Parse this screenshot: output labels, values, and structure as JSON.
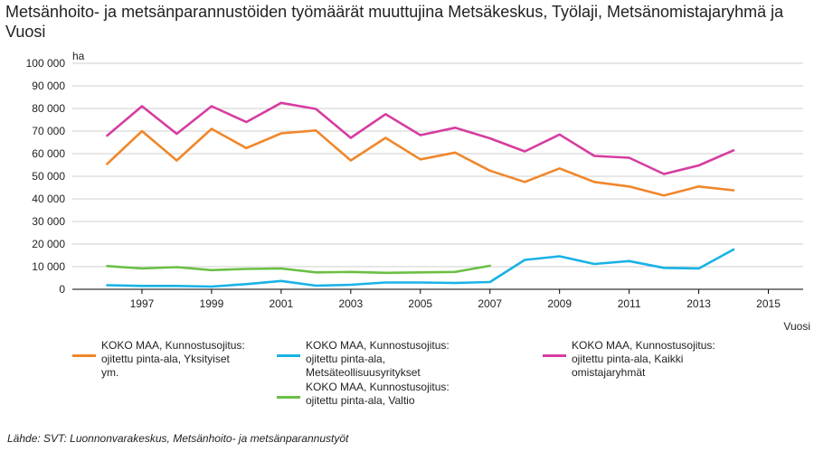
{
  "title": "Metsänhoito- ja metsänparannustöiden työmäärät muuttujina Metsäkeskus, Työlaji, Metsänomistajaryhmä ja Vuosi",
  "source": "Lähde: SVT: Luonnonvarakeskus, Metsänhoito- ja metsänparannustyöt",
  "chart_data": {
    "type": "line",
    "title": "Metsänhoito- ja metsänparannustöiden työmäärät muuttujina Metsäkeskus, Työlaji, Metsänomistajaryhmä ja Vuosi",
    "ylabel": "ha",
    "xlabel": "Vuosi",
    "xlim": [
      1995,
      2016
    ],
    "ylim": [
      0,
      100000
    ],
    "x_ticks": [
      1997,
      1999,
      2001,
      2003,
      2005,
      2007,
      2009,
      2011,
      2013,
      2015
    ],
    "y_ticks": [
      0,
      10000,
      20000,
      30000,
      40000,
      50000,
      60000,
      70000,
      80000,
      90000,
      100000
    ],
    "y_tick_labels": [
      "0",
      "10 000",
      "20 000",
      "30 000",
      "40 000",
      "50 000",
      "60 000",
      "70 000",
      "80 000",
      "90 000",
      "100 000"
    ],
    "grid": true,
    "legend_position": "bottom",
    "series": [
      {
        "name": "KOKO MAA, Kunnostusojitus: ojitettu pinta-ala, Yksityiset ym.",
        "color": "#f0872b",
        "x": [
          1996,
          1997,
          1998,
          1999,
          2000,
          2001,
          2002,
          2003,
          2004,
          2005,
          2006,
          2007,
          2008,
          2009,
          2010,
          2011,
          2012,
          2013,
          2014
        ],
        "values": [
          55500,
          70000,
          57000,
          71000,
          62500,
          69000,
          70300,
          57000,
          67000,
          57500,
          60500,
          52500,
          47500,
          53500,
          47500,
          45500,
          41500,
          45500,
          43800
        ]
      },
      {
        "name": "KOKO MAA, Kunnostusojitus: ojitettu pinta-ala, Metsäteollisuusyritykset",
        "color": "#1ab2e6",
        "x": [
          1996,
          1997,
          1998,
          1999,
          2000,
          2001,
          2002,
          2003,
          2004,
          2005,
          2006,
          2007,
          2008,
          2009,
          2010,
          2011,
          2012,
          2013,
          2014
        ],
        "values": [
          1800,
          1500,
          1500,
          1200,
          2300,
          3700,
          1600,
          2000,
          3000,
          3000,
          2800,
          3200,
          13000,
          14600,
          11200,
          12500,
          9500,
          9200,
          17600
        ]
      },
      {
        "name": "KOKO MAA, Kunnostusojitus: ojitettu pinta-ala, Kaikki omistajaryhmät",
        "color": "#d63da0",
        "x": [
          1996,
          1997,
          1998,
          1999,
          2000,
          2001,
          2002,
          2003,
          2004,
          2005,
          2006,
          2007,
          2008,
          2009,
          2010,
          2011,
          2012,
          2013,
          2014
        ],
        "values": [
          68000,
          81000,
          68800,
          81000,
          74000,
          82500,
          79800,
          67000,
          77500,
          68200,
          71500,
          66800,
          61000,
          68500,
          59000,
          58200,
          51000,
          54800,
          61500
        ]
      },
      {
        "name": "KOKO MAA, Kunnostusojitus: ojitettu pinta-ala, Valtio",
        "color": "#6cbf45",
        "x": [
          1996,
          1997,
          1998,
          1999,
          2000,
          2001,
          2002,
          2003,
          2004,
          2005,
          2006,
          2007
        ],
        "values": [
          10300,
          9200,
          9800,
          8500,
          9000,
          9200,
          7500,
          7700,
          7300,
          7500,
          7700,
          10400
        ]
      }
    ]
  },
  "legend": [
    {
      "series_index": 0,
      "lines": [
        "KOKO MAA, Kunnostusojitus:",
        "ojitettu pinta-ala, Yksityiset",
        "ym."
      ]
    },
    {
      "series_index": 1,
      "lines": [
        "KOKO MAA, Kunnostusojitus:",
        "ojitettu pinta-ala, Metsäteollisuusyritykset"
      ]
    },
    {
      "series_index": 2,
      "lines": [
        "KOKO MAA, Kunnostusojitus:",
        "ojitettu pinta-ala, Kaikki",
        "omistajaryhmät"
      ]
    },
    {
      "series_index": 3,
      "lines": [
        "KOKO MAA, Kunnostusojitus:",
        "ojitettu pinta-ala, Valtio"
      ]
    }
  ]
}
